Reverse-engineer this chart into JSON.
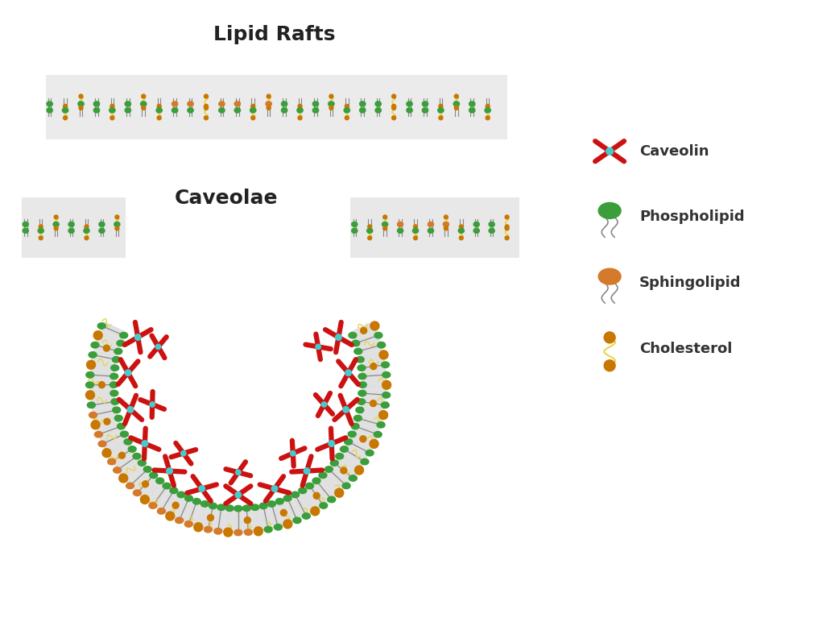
{
  "title_raft": "Lipid Rafts",
  "title_caveolae": "Caveolae",
  "title_fontsize": 18,
  "bg_color": "#ffffff",
  "legend_items": [
    "Caveolin",
    "Phospholipid",
    "Sphingolipid",
    "Cholesterol"
  ],
  "phospholipid_head_color": "#3a9e3a",
  "sphingolipid_head_color": "#d47a2a",
  "cholesterol_color": "#e8d44d",
  "cholesterol_dot_color": "#c87800",
  "tail_color_gray": "#888888",
  "tail_color_yellow": "#e8d44d",
  "tail_color_white": "#cccccc",
  "caveolin_color": "#cc1111",
  "caveolin_linker_color": "#44cccc",
  "membrane_bg": "#f0f0f0"
}
